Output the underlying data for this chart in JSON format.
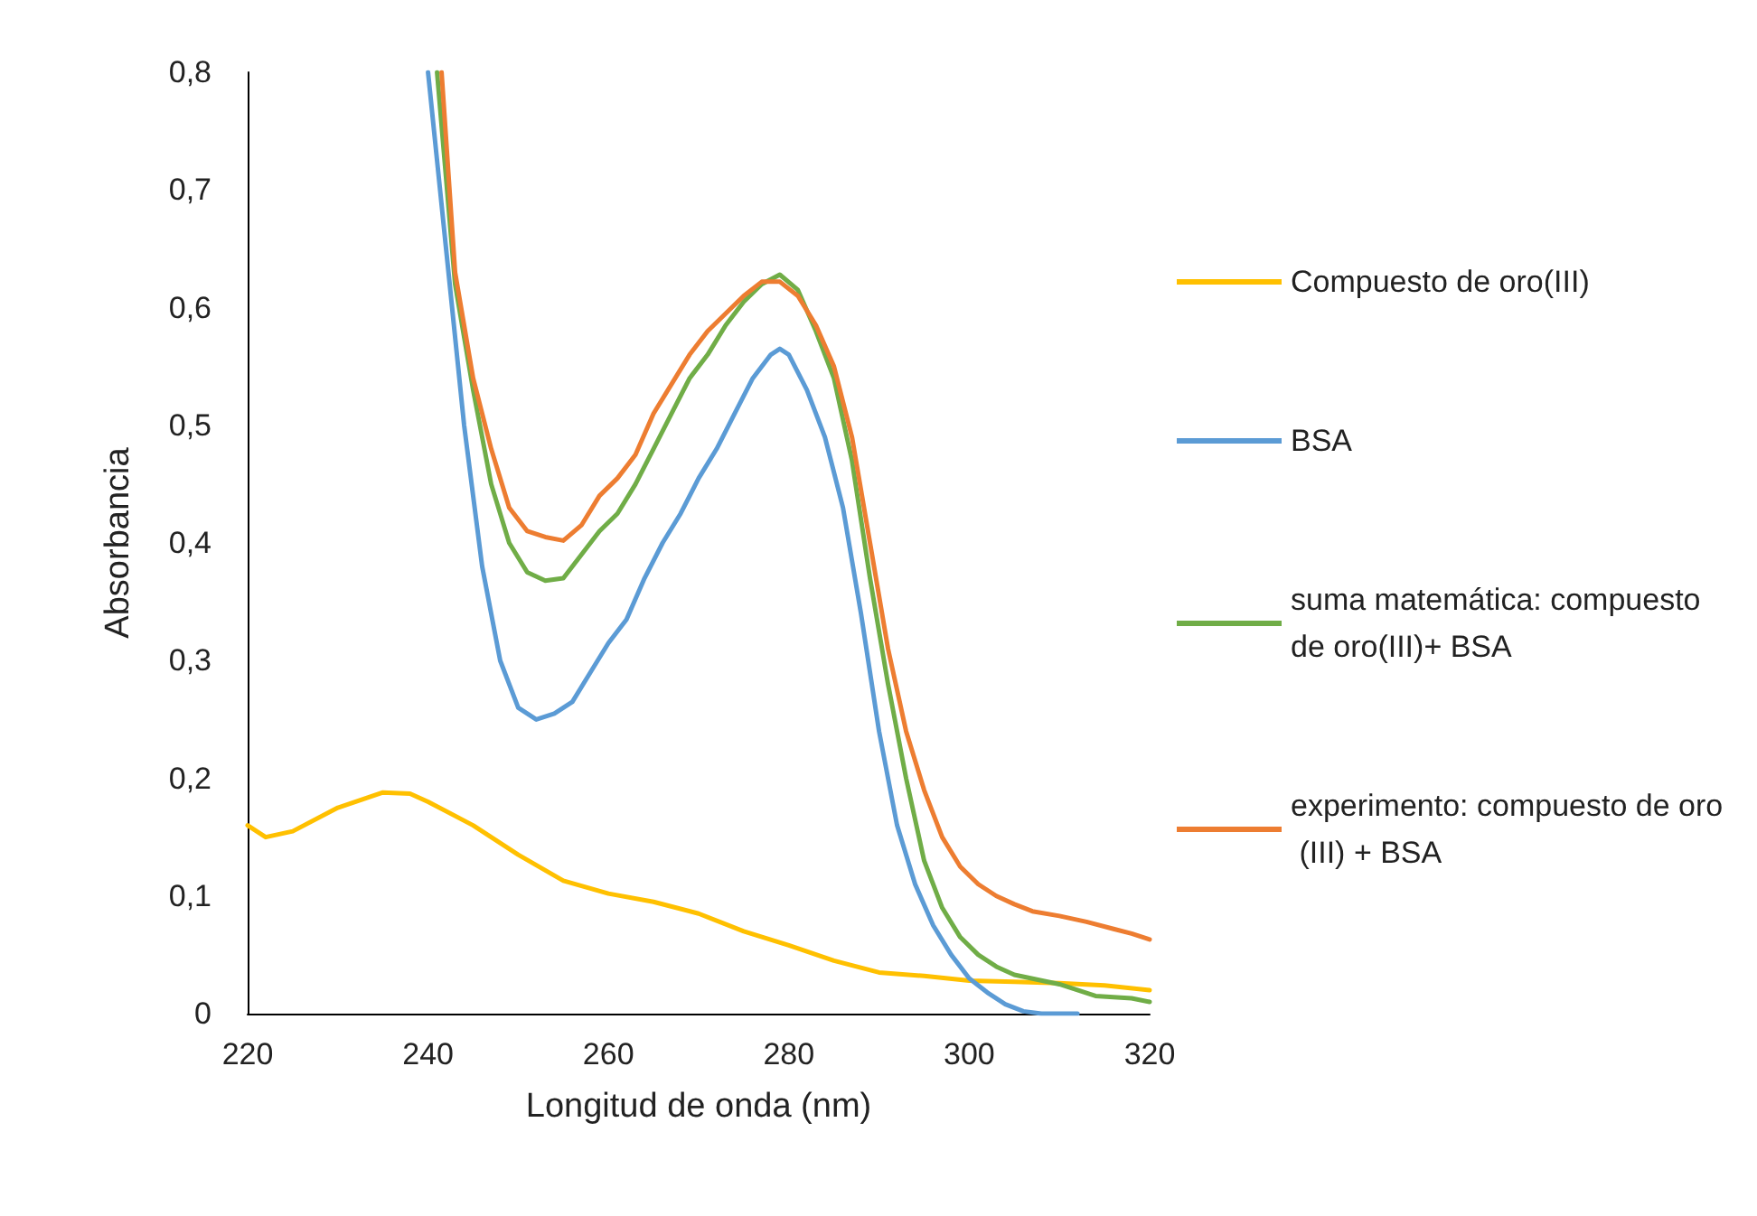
{
  "chart_data": {
    "type": "line",
    "xlabel": "Longitud de onda (nm)",
    "ylabel": "Absorbancia",
    "xlim": [
      220,
      320
    ],
    "xticks": [
      220,
      240,
      260,
      280,
      300,
      320
    ],
    "ylim": [
      0,
      0.8
    ],
    "yticks": [
      {
        "value": 0,
        "label": "0"
      },
      {
        "value": 0.1,
        "label": "0,1"
      },
      {
        "value": 0.2,
        "label": "0,2"
      },
      {
        "value": 0.3,
        "label": "0,3"
      },
      {
        "value": 0.4,
        "label": "0,4"
      },
      {
        "value": 0.5,
        "label": "0,5"
      },
      {
        "value": 0.6,
        "label": "0,6"
      },
      {
        "value": 0.7,
        "label": "0,7"
      },
      {
        "value": 0.8,
        "label": "0,8"
      }
    ],
    "grid": false,
    "legend": "right",
    "marker": "none",
    "line_style": "solid",
    "series": [
      {
        "name": "Compuesto de oro(III)",
        "color": "#ffc000",
        "x": [
          220,
          222,
          225,
          230,
          235,
          238,
          240,
          245,
          250,
          255,
          260,
          265,
          270,
          275,
          280,
          285,
          290,
          295,
          300,
          305,
          310,
          315,
          320
        ],
        "values": [
          0.16,
          0.15,
          0.155,
          0.175,
          0.188,
          0.187,
          0.18,
          0.16,
          0.135,
          0.113,
          0.102,
          0.095,
          0.085,
          0.07,
          0.058,
          0.045,
          0.035,
          0.032,
          0.028,
          0.027,
          0.026,
          0.024,
          0.02
        ]
      },
      {
        "name": "BSA",
        "color": "#5b9bd5",
        "x": [
          240,
          242,
          244,
          246,
          248,
          250,
          252,
          254,
          256,
          258,
          260,
          262,
          264,
          266,
          268,
          270,
          272,
          274,
          276,
          278,
          279,
          280,
          282,
          284,
          286,
          288,
          290,
          292,
          294,
          296,
          298,
          300,
          302,
          304,
          306,
          308,
          312
        ],
        "values": [
          0.8,
          0.65,
          0.5,
          0.38,
          0.3,
          0.26,
          0.25,
          0.255,
          0.265,
          0.29,
          0.315,
          0.335,
          0.37,
          0.4,
          0.425,
          0.455,
          0.48,
          0.51,
          0.54,
          0.56,
          0.565,
          0.56,
          0.53,
          0.49,
          0.43,
          0.34,
          0.24,
          0.16,
          0.11,
          0.075,
          0.05,
          0.03,
          0.018,
          0.008,
          0.002,
          0,
          0
        ]
      },
      {
        "name": "suma matemática: compuesto de oro(III)+ BSA",
        "color": "#70ad47",
        "x": [
          241,
          243,
          245,
          247,
          249,
          251,
          253,
          255,
          257,
          259,
          261,
          263,
          265,
          267,
          269,
          271,
          273,
          275,
          277,
          279,
          281,
          283,
          285,
          287,
          289,
          291,
          293,
          295,
          297,
          299,
          301,
          303,
          305,
          310,
          314,
          318,
          320
        ],
        "values": [
          0.8,
          0.62,
          0.53,
          0.45,
          0.4,
          0.375,
          0.368,
          0.37,
          0.39,
          0.41,
          0.425,
          0.45,
          0.48,
          0.51,
          0.54,
          0.56,
          0.585,
          0.605,
          0.62,
          0.628,
          0.615,
          0.58,
          0.54,
          0.47,
          0.37,
          0.28,
          0.2,
          0.13,
          0.09,
          0.065,
          0.05,
          0.04,
          0.033,
          0.025,
          0.015,
          0.013,
          0.01
        ]
      },
      {
        "name": "experimento: compuesto de oro (III) + BSA",
        "color": "#ed7d31",
        "x": [
          241.5,
          243,
          245,
          247,
          249,
          251,
          253,
          255,
          257,
          259,
          261,
          263,
          265,
          267,
          269,
          271,
          273,
          275,
          277,
          279,
          281,
          283,
          285,
          287,
          289,
          291,
          293,
          295,
          297,
          299,
          301,
          303,
          305,
          307,
          310,
          313,
          316,
          318,
          320
        ],
        "values": [
          0.8,
          0.63,
          0.54,
          0.48,
          0.43,
          0.41,
          0.405,
          0.402,
          0.415,
          0.44,
          0.455,
          0.475,
          0.51,
          0.535,
          0.56,
          0.58,
          0.595,
          0.61,
          0.622,
          0.622,
          0.61,
          0.585,
          0.55,
          0.49,
          0.4,
          0.31,
          0.24,
          0.19,
          0.15,
          0.125,
          0.11,
          0.1,
          0.093,
          0.087,
          0.083,
          0.078,
          0.072,
          0.068,
          0.063
        ]
      }
    ]
  }
}
